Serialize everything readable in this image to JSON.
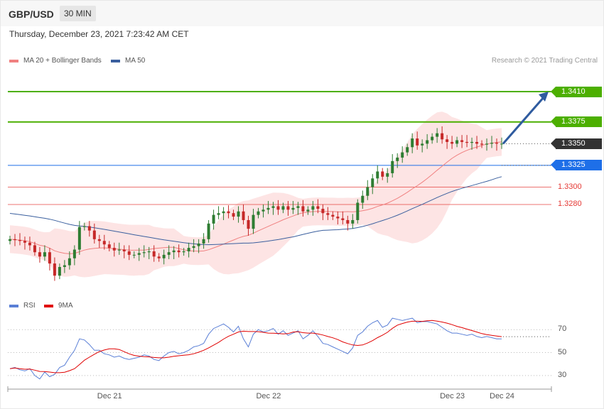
{
  "header": {
    "symbol": "GBP/USD",
    "interval": "30 MIN"
  },
  "datetime": "Thursday, December 23, 2021 7:23:42 AM CET",
  "legend": {
    "ma20_label": "MA 20 + Bollinger Bands",
    "ma20_color": "#f08080",
    "ma50_label": "MA 50",
    "ma50_color": "#3a5f9e",
    "rsi_label": "RSI",
    "rsi_color": "#5a7fd6",
    "rsi9_label": "9MA",
    "rsi9_color": "#e00000"
  },
  "credit": "Research © 2021 Trading Central",
  "chart_data": [
    {
      "type": "candlestick",
      "title": "GBP/USD 30 MIN",
      "ylim": [
        1.3172,
        1.3437
      ],
      "colors": {
        "up": "#2e7d32",
        "down": "#c62828",
        "bands": "#fde4e4",
        "ma20": "#f08080",
        "ma50": "#3a5f9e"
      },
      "levels": [
        {
          "value": 1.341,
          "label": "1.3410",
          "style": "resistance",
          "color": "#4caf00"
        },
        {
          "value": 1.3375,
          "label": "1.3375",
          "style": "resistance",
          "color": "#4caf00"
        },
        {
          "value": 1.335,
          "label": "1.3350",
          "style": "last-price",
          "color": "#333333"
        },
        {
          "value": 1.3325,
          "label": "1.3325",
          "style": "pivot",
          "color": "#1e6fe8"
        },
        {
          "value": 1.33,
          "label": "1.3300",
          "style": "support",
          "color": "#e53935"
        },
        {
          "value": 1.328,
          "label": "1.3280",
          "style": "support",
          "color": "#e53935"
        }
      ],
      "target_arrow": {
        "from": 1.335,
        "to": 1.341
      },
      "x_ticks": [
        {
          "label": "Dec 21",
          "index": 20
        },
        {
          "label": "Dec 22",
          "index": 52
        },
        {
          "label": "Dec 23",
          "index": 89
        },
        {
          "label": "Dec 24",
          "index": 99
        }
      ],
      "closes": [
        1.324,
        1.3239,
        1.3238,
        1.3236,
        1.3233,
        1.3225,
        1.322,
        1.3225,
        1.3212,
        1.3198,
        1.3208,
        1.321,
        1.3218,
        1.3228,
        1.3254,
        1.3255,
        1.325,
        1.324,
        1.3238,
        1.3234,
        1.323,
        1.3227,
        1.3228,
        1.3226,
        1.3222,
        1.3222,
        1.3224,
        1.3225,
        1.3226,
        1.322,
        1.3218,
        1.3222,
        1.3225,
        1.3227,
        1.3225,
        1.3226,
        1.323,
        1.3232,
        1.3235,
        1.324,
        1.3258,
        1.3268,
        1.327,
        1.3272,
        1.327,
        1.3266,
        1.3272,
        1.3262,
        1.3252,
        1.3268,
        1.3272,
        1.3274,
        1.3276,
        1.3278,
        1.3274,
        1.3278,
        1.3274,
        1.3276,
        1.3278,
        1.3272,
        1.3274,
        1.3278,
        1.3275,
        1.327,
        1.3268,
        1.3266,
        1.3264,
        1.3262,
        1.3258,
        1.3262,
        1.3282,
        1.329,
        1.33,
        1.331,
        1.3318,
        1.3312,
        1.3316,
        1.333,
        1.3334,
        1.334,
        1.3346,
        1.3356,
        1.3348,
        1.335,
        1.3354,
        1.3358,
        1.3362,
        1.3355,
        1.3352,
        1.335,
        1.3354,
        1.3352,
        1.3351,
        1.3352,
        1.335,
        1.3349,
        1.335,
        1.3351,
        1.335,
        1.335
      ],
      "rsi": {
        "series": [
          {
            "name": "RSI",
            "color": "#5a7fd6"
          },
          {
            "name": "9MA",
            "color": "#e00000"
          }
        ],
        "ylim": [
          20,
          85
        ],
        "guides": [
          70,
          50,
          30
        ],
        "values": [
          36,
          37,
          35,
          34,
          36,
          30,
          27,
          33,
          29,
          31,
          37,
          39,
          46,
          52,
          62,
          61,
          57,
          52,
          52,
          49,
          48,
          46,
          47,
          45,
          44,
          45,
          46,
          48,
          47,
          44,
          43,
          47,
          50,
          51,
          49,
          50,
          52,
          55,
          56,
          58,
          66,
          71,
          73,
          75,
          72,
          68,
          73,
          62,
          55,
          66,
          70,
          68,
          69,
          71,
          66,
          69,
          65,
          67,
          69,
          62,
          65,
          69,
          64,
          58,
          57,
          55,
          53,
          51,
          49,
          54,
          65,
          68,
          73,
          76,
          78,
          72,
          74,
          80,
          79,
          78,
          79,
          80,
          76,
          77,
          77,
          76,
          75,
          72,
          69,
          67,
          67,
          66,
          65,
          66,
          64,
          63,
          64,
          63,
          62,
          62
        ]
      }
    }
  ]
}
